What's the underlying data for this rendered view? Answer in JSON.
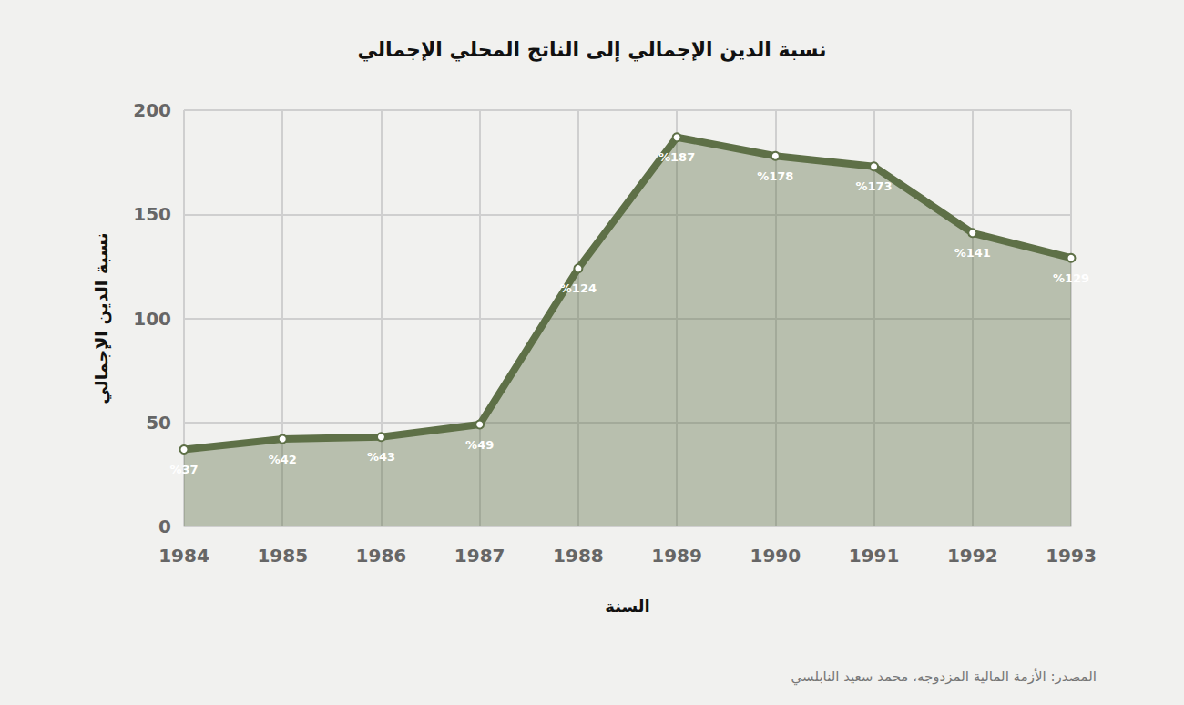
{
  "chart_data": {
    "type": "area",
    "title": "نسبة الدين الإجمالي إلى الناتج المحلي الإجمالي",
    "x_label": "السنة",
    "y_label": "نسبة الدين الإجمالي",
    "source": "المصدر: الأزمة المالية المزدوجه، محمد سعيد النابلسي",
    "categories": [
      "1984",
      "1985",
      "1986",
      "1987",
      "1988",
      "1989",
      "1990",
      "1991",
      "1992",
      "1993"
    ],
    "values": [
      37,
      42,
      43,
      49,
      124,
      187,
      178,
      173,
      141,
      129
    ],
    "value_labels": [
      "%37",
      "%42",
      "%43",
      "%49",
      "%124",
      "%187",
      "%178",
      "%173",
      "%141",
      "%129"
    ],
    "color": "#5e7047",
    "ylim": [
      0,
      200
    ],
    "yticks": [
      0,
      50,
      100,
      150,
      200
    ],
    "grid": true,
    "data_labels": true,
    "marker": "circle"
  }
}
